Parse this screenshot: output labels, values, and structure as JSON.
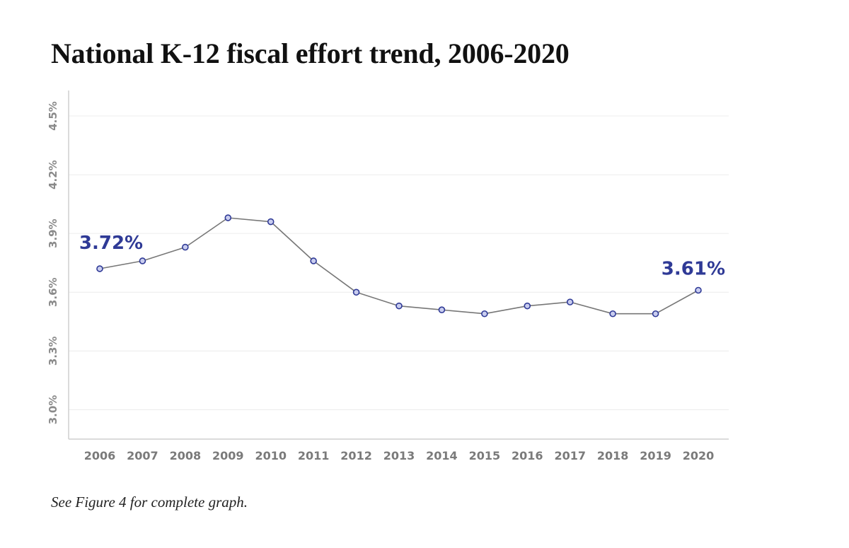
{
  "title": "National K-12 fiscal effort trend, 2006-2020",
  "footnote": "See Figure 4 for complete graph.",
  "colors": {
    "line": "#777777",
    "marker_fill": "#c9cdef",
    "marker_stroke": "#2f3a96",
    "data_label": "#2f3a96",
    "grid": "#ececec",
    "axis": "#cfcfcf",
    "tick_text": "#8a8a8a"
  },
  "chart_data": {
    "type": "line",
    "title": "National K-12 fiscal effort trend, 2006-2020",
    "xlabel": "",
    "ylabel": "",
    "categories": [
      "2006",
      "2007",
      "2008",
      "2009",
      "2010",
      "2011",
      "2012",
      "2013",
      "2014",
      "2015",
      "2016",
      "2017",
      "2018",
      "2019",
      "2020"
    ],
    "values": [
      3.72,
      3.76,
      3.83,
      3.98,
      3.96,
      3.76,
      3.6,
      3.53,
      3.51,
      3.49,
      3.53,
      3.55,
      3.49,
      3.49,
      3.61
    ],
    "ylim": [
      2.85,
      4.63
    ],
    "yticks": [
      3.0,
      3.3,
      3.6,
      3.9,
      4.2,
      4.5
    ],
    "ytick_labels": [
      "3.0%",
      "3.3%",
      "3.6%",
      "3.9%",
      "4.2%",
      "4.5%"
    ],
    "grid": true,
    "legend": "none",
    "annotations": [
      {
        "index": 0,
        "text": "3.72%"
      },
      {
        "index": 14,
        "text": "3.61%"
      }
    ]
  }
}
